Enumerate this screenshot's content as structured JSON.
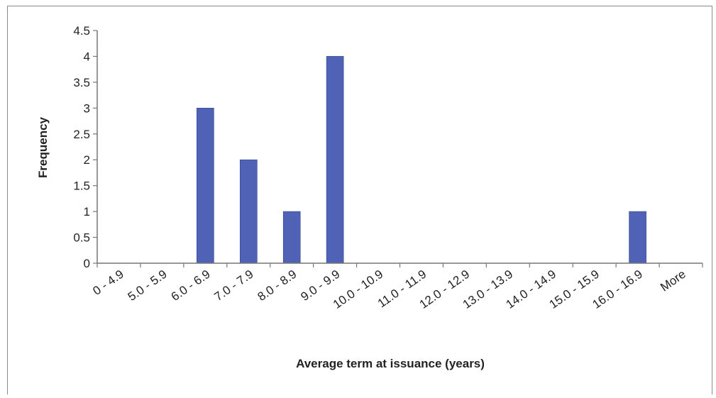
{
  "chart_data": {
    "type": "bar",
    "title": "",
    "xlabel": "Average term at issuance  (years)",
    "ylabel": "Frequency",
    "categories": [
      "0 - 4.9",
      "5.0 - 5.9",
      "6.0 - 6.9",
      "7.0 - 7.9",
      "8.0 - 8.9",
      "9.0 - 9.9",
      "10.0 - 10.9",
      "11.0 - 11.9",
      "12.0 - 12.9",
      "13.0 - 13.9",
      "14.0 - 14.9",
      "15.0 - 15.9",
      "16.0 - 16.9",
      "More"
    ],
    "values": [
      0,
      0,
      3,
      2,
      1,
      4,
      0,
      0,
      0,
      0,
      0,
      0,
      1,
      0
    ],
    "ylim": [
      0,
      4.5
    ],
    "yticks": [
      "0",
      "0.5",
      "1",
      "1.5",
      "2",
      "2.5",
      "3",
      "3.5",
      "4",
      "4.5"
    ],
    "grid": false,
    "legend": "none",
    "bar_color": "#4f62b5"
  }
}
